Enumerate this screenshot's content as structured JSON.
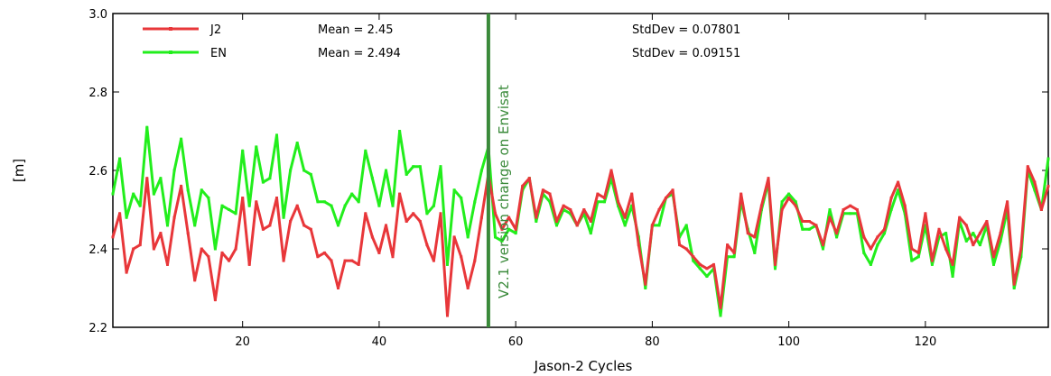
{
  "chart_data": {
    "type": "line",
    "xlabel": "Jason-2 Cycles",
    "ylabel": "[m]",
    "xlim": [
      1,
      138
    ],
    "ylim": [
      2.2,
      3.0
    ],
    "xticks": [
      20,
      40,
      60,
      80,
      100,
      120
    ],
    "yticks": [
      2.2,
      2.4,
      2.6,
      2.8,
      3.0
    ],
    "ytick_labels": [
      "2.2",
      "2.4",
      "2.6",
      "2.8",
      "3.0"
    ],
    "grid": false,
    "legend_position": "top-left",
    "x_start": 1,
    "series": [
      {
        "name": "J2",
        "color": "#e8373a",
        "mean_label": "Mean = 2.45",
        "std_label": "StdDev = 0.07801",
        "values": [
          2.43,
          2.49,
          2.34,
          2.4,
          2.41,
          2.58,
          2.4,
          2.44,
          2.36,
          2.48,
          2.56,
          2.44,
          2.32,
          2.4,
          2.38,
          2.27,
          2.39,
          2.37,
          2.4,
          2.53,
          2.36,
          2.52,
          2.45,
          2.46,
          2.53,
          2.37,
          2.47,
          2.51,
          2.46,
          2.45,
          2.38,
          2.39,
          2.37,
          2.3,
          2.37,
          2.37,
          2.36,
          2.49,
          2.43,
          2.39,
          2.46,
          2.38,
          2.54,
          2.47,
          2.49,
          2.47,
          2.41,
          2.37,
          2.49,
          2.23,
          2.43,
          2.38,
          2.3,
          2.37,
          2.48,
          2.59,
          2.49,
          2.45,
          2.48,
          2.45,
          2.56,
          2.58,
          2.48,
          2.55,
          2.54,
          2.47,
          2.51,
          2.5,
          2.46,
          2.5,
          2.47,
          2.54,
          2.53,
          2.6,
          2.52,
          2.48,
          2.54,
          2.41,
          2.31,
          2.46,
          2.5,
          2.53,
          2.55,
          2.41,
          2.4,
          2.38,
          2.36,
          2.35,
          2.36,
          2.25,
          2.41,
          2.39,
          2.54,
          2.44,
          2.43,
          2.51,
          2.58,
          2.36,
          2.5,
          2.53,
          2.51,
          2.47,
          2.47,
          2.46,
          2.41,
          2.48,
          2.44,
          2.5,
          2.51,
          2.5,
          2.43,
          2.4,
          2.43,
          2.45,
          2.53,
          2.57,
          2.51,
          2.4,
          2.39,
          2.49,
          2.37,
          2.45,
          2.4,
          2.36,
          2.48,
          2.46,
          2.41,
          2.44,
          2.47,
          2.38,
          2.44,
          2.52,
          2.31,
          2.4,
          2.61,
          2.57,
          2.5,
          2.56
        ]
      },
      {
        "name": "EN",
        "color": "#22ee1c",
        "mean_label": "Mean = 2.494",
        "std_label": "StdDev = 0.09151",
        "values": [
          2.54,
          2.63,
          2.48,
          2.54,
          2.51,
          2.71,
          2.54,
          2.58,
          2.46,
          2.6,
          2.68,
          2.55,
          2.46,
          2.55,
          2.53,
          2.4,
          2.51,
          2.5,
          2.49,
          2.65,
          2.51,
          2.66,
          2.57,
          2.58,
          2.69,
          2.48,
          2.6,
          2.67,
          2.6,
          2.59,
          2.52,
          2.52,
          2.51,
          2.46,
          2.51,
          2.54,
          2.52,
          2.65,
          2.58,
          2.51,
          2.6,
          2.51,
          2.7,
          2.59,
          2.61,
          2.61,
          2.49,
          2.51,
          2.61,
          2.36,
          2.55,
          2.53,
          2.43,
          2.52,
          2.6,
          2.66,
          2.43,
          2.42,
          2.45,
          2.44,
          2.55,
          2.58,
          2.47,
          2.54,
          2.52,
          2.46,
          2.5,
          2.49,
          2.46,
          2.49,
          2.44,
          2.52,
          2.52,
          2.58,
          2.51,
          2.46,
          2.51,
          2.43,
          2.3,
          2.46,
          2.46,
          2.53,
          2.54,
          2.43,
          2.46,
          2.37,
          2.35,
          2.33,
          2.35,
          2.23,
          2.38,
          2.38,
          2.52,
          2.45,
          2.39,
          2.5,
          2.57,
          2.35,
          2.52,
          2.54,
          2.52,
          2.45,
          2.45,
          2.46,
          2.4,
          2.5,
          2.43,
          2.49,
          2.49,
          2.49,
          2.39,
          2.36,
          2.41,
          2.44,
          2.5,
          2.55,
          2.49,
          2.37,
          2.38,
          2.46,
          2.36,
          2.43,
          2.44,
          2.33,
          2.47,
          2.42,
          2.44,
          2.41,
          2.46,
          2.36,
          2.42,
          2.5,
          2.3,
          2.38,
          2.6,
          2.55,
          2.5,
          2.63
        ]
      }
    ],
    "vline": {
      "x": 56,
      "label": "V2.1 version change on Envisat",
      "color": "#3a8a3a"
    }
  }
}
